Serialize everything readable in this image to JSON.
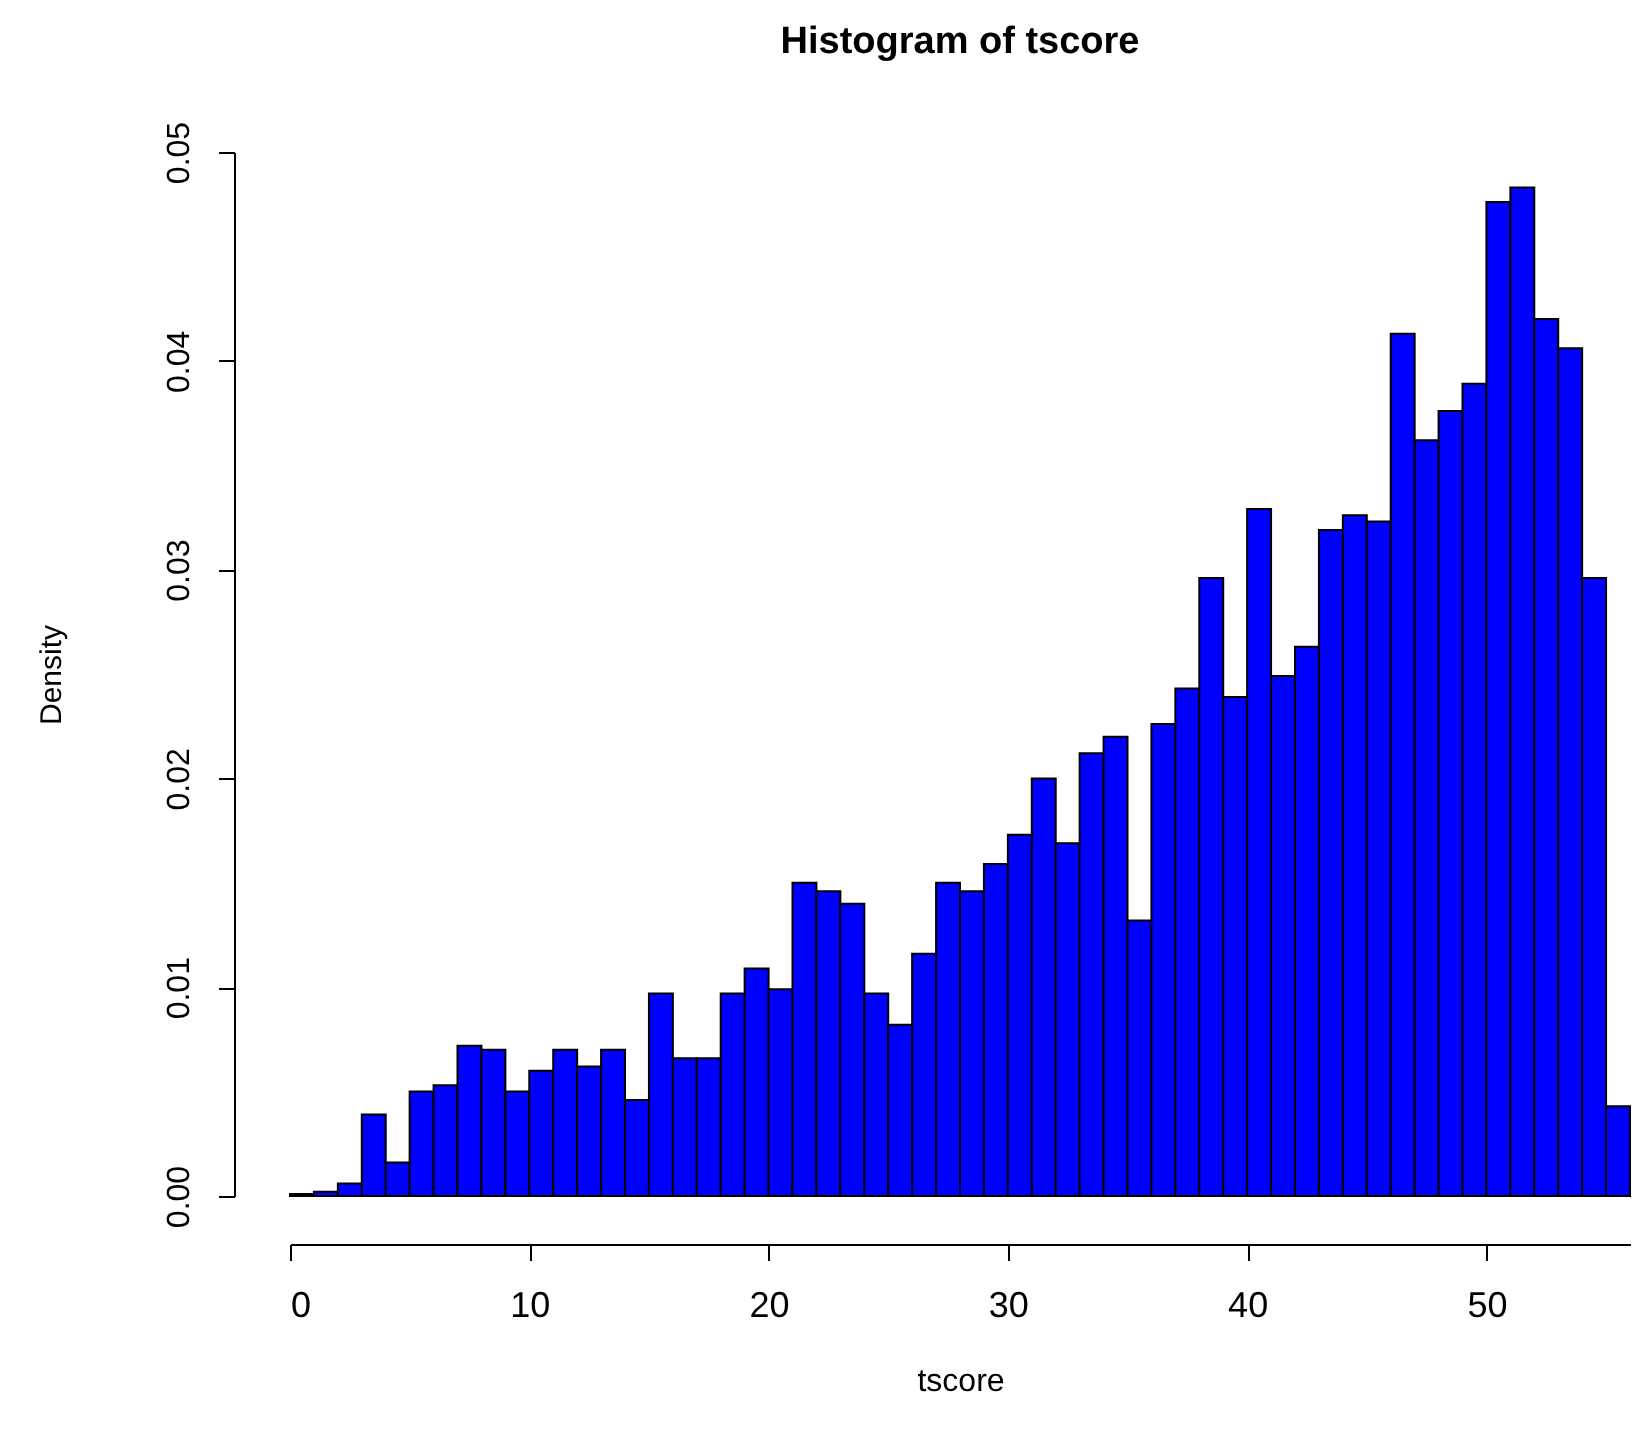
{
  "chart_data": {
    "type": "histogram",
    "title": "Histogram of tscore",
    "xlabel": "tscore",
    "ylabel": "Density",
    "color": "#0000ff",
    "bins": [
      0,
      1,
      2,
      3,
      4,
      5,
      6,
      7,
      8,
      9,
      10,
      11,
      12,
      13,
      14,
      15,
      16,
      17,
      18,
      19,
      20,
      21,
      22,
      23,
      24,
      25,
      26,
      27,
      28,
      29,
      30,
      31,
      32,
      33,
      34,
      35,
      36,
      37,
      38,
      39,
      40,
      41,
      42,
      43,
      44,
      45,
      46,
      47,
      48,
      49,
      50,
      51,
      52,
      53,
      54,
      55,
      56
    ],
    "values": [
      0.0001,
      0.0002,
      0.0006,
      0.0039,
      0.0016,
      0.005,
      0.0053,
      0.0072,
      0.007,
      0.005,
      0.006,
      0.007,
      0.0062,
      0.007,
      0.0046,
      0.0097,
      0.0066,
      0.0066,
      0.0097,
      0.0109,
      0.0099,
      0.015,
      0.0146,
      0.014,
      0.0097,
      0.0082,
      0.0116,
      0.015,
      0.0146,
      0.0159,
      0.0173,
      0.02,
      0.0169,
      0.0212,
      0.022,
      0.0132,
      0.0226,
      0.0243,
      0.0296,
      0.0239,
      0.0329,
      0.0249,
      0.0263,
      0.0319,
      0.0326,
      0.0323,
      0.0413,
      0.0362,
      0.0376,
      0.0389,
      0.0476,
      0.0483,
      0.042,
      0.0406,
      0.0296,
      0.0043
    ],
    "xlim": [
      0,
      56
    ],
    "xticks": [
      0,
      10,
      20,
      30,
      40,
      50
    ],
    "ylim": [
      0,
      0.05
    ],
    "yticks": [
      {
        "value": 0,
        "label": "0.00"
      },
      {
        "value": 0.01,
        "label": "0.01"
      },
      {
        "value": 0.02,
        "label": "0.02"
      },
      {
        "value": 0.03,
        "label": "0.03"
      },
      {
        "value": 0.04,
        "label": "0.04"
      },
      {
        "value": 0.05,
        "label": "0.05"
      }
    ],
    "grid": false
  }
}
